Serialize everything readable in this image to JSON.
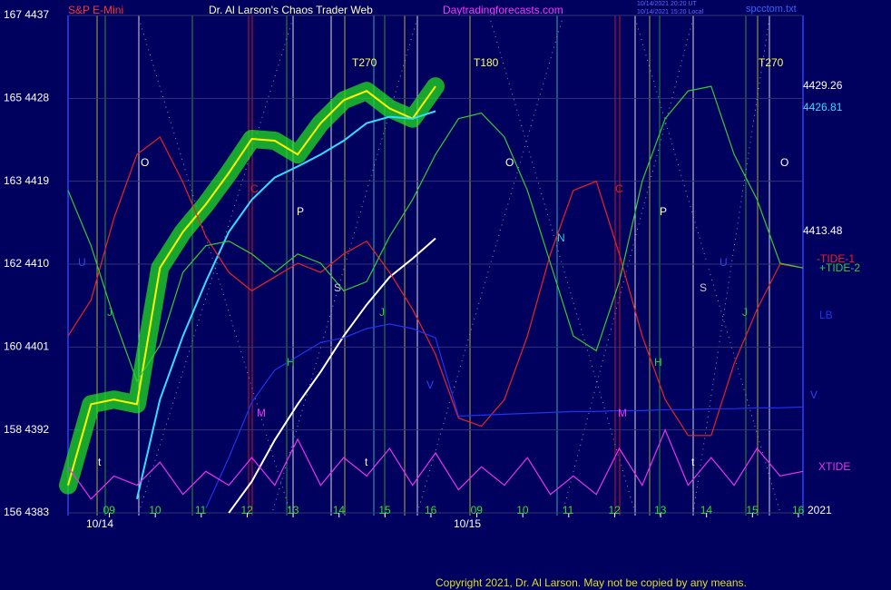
{
  "chart_data": {
    "type": "line",
    "title": "Dr. Al Larson's Chaos Trader Web",
    "symbol": "S&P E-Mini",
    "site": "Daytradingforecasts.com",
    "timestamps": [
      "10/14/2021 20:20 UT",
      "10/14/2021 15:20 Local"
    ],
    "file": "spcctom.txt",
    "copyright": "Copyright 2021, Dr. Al Larson. May not be copied by any means.",
    "dates": [
      "10/14",
      "10/15"
    ],
    "year": "2021",
    "ylim": [
      4383,
      4437
    ],
    "yticks": [
      {
        "value": 4383,
        "label": "156 4383"
      },
      {
        "value": 4392,
        "label": "158 4392"
      },
      {
        "value": 4401,
        "label": "160 4401"
      },
      {
        "value": 4410,
        "label": "162 4410"
      },
      {
        "value": 4419,
        "label": "163 4419"
      },
      {
        "value": 4428,
        "label": "165 4428"
      },
      {
        "value": 4437,
        "label": "167 4437"
      }
    ],
    "xlim": [
      -0.9,
      15.1
    ],
    "xticks": [
      {
        "value": 0,
        "label": "09"
      },
      {
        "value": 1,
        "label": "10"
      },
      {
        "value": 2,
        "label": "11"
      },
      {
        "value": 3,
        "label": "12"
      },
      {
        "value": 4,
        "label": "13"
      },
      {
        "value": 5,
        "label": "14"
      },
      {
        "value": 6,
        "label": "15"
      },
      {
        "value": 7,
        "label": "16"
      },
      {
        "value": 8,
        "label": "09"
      },
      {
        "value": 9,
        "label": "10"
      },
      {
        "value": 10,
        "label": "11"
      },
      {
        "value": 11,
        "label": "12"
      },
      {
        "value": 12,
        "label": "13"
      },
      {
        "value": 13,
        "label": "14"
      },
      {
        "value": 14,
        "label": "15"
      },
      {
        "value": 15,
        "label": "16"
      }
    ],
    "grid": true,
    "x": [
      -0.9,
      -0.4,
      0.1,
      0.6,
      1.1,
      1.6,
      2.1,
      2.6,
      3.1,
      3.6,
      4.1,
      4.6,
      5.1,
      5.6,
      6.1,
      6.6,
      7.1,
      7.6,
      8.1,
      8.6,
      9.1,
      9.6,
      10.1,
      10.6,
      11.1,
      11.6,
      12.1,
      12.6,
      13.1,
      13.6,
      14.1,
      14.6,
      15.1
    ],
    "series": [
      {
        "color": "#ffff00",
        "values": [
          4386,
          4394.8,
          4395.3,
          4394.8,
          4409.6,
          4413.5,
          4416.5,
          4419.9,
          4423.6,
          4423.4,
          4421.9,
          4425.3,
          4427.8,
          4428.8,
          4426.9,
          4425.8,
          4429.3,
          null,
          null,
          null,
          null,
          null,
          null,
          null,
          null,
          null,
          null,
          null,
          null,
          null,
          null,
          null,
          null
        ]
      },
      {
        "color": "#33ddff",
        "values": [
          null,
          null,
          null,
          4384.5,
          4395.3,
          4402.2,
          4408.1,
          4413.5,
          4417,
          4419.4,
          4420.6,
          4421.9,
          4423.4,
          4425.3,
          4426,
          4425.8,
          4426.6,
          null,
          null,
          null,
          null,
          null,
          null,
          null,
          null,
          null,
          null,
          null,
          null,
          null,
          null,
          null,
          null
        ]
      },
      {
        "color": "#ffffff",
        "values": [
          null,
          null,
          null,
          null,
          null,
          null,
          null,
          4383,
          4386.4,
          4390.9,
          4394.8,
          4398.3,
          4402.2,
          4405.6,
          4408.6,
          4410.6,
          4412.8,
          null,
          null,
          null,
          null,
          null,
          null,
          null,
          null,
          null,
          null,
          null,
          null,
          null,
          null,
          null,
          null
        ]
      },
      {
        "name": "-TIDE-1",
        "color": "#ee2222",
        "values": [
          4402.2,
          4406.1,
          4415,
          4421.9,
          4423.8,
          4418.9,
          4413,
          4409.1,
          4407.1,
          4408.6,
          4410.1,
          4409.1,
          4411.1,
          4412.5,
          4409.1,
          4405.1,
          4400.2,
          4393.3,
          4392.4,
          4395.3,
          4402.2,
          4411.1,
          4418,
          4419,
          4411.1,
          4402.2,
          4395.3,
          4391.4,
          4391.4,
          4399.2,
          4405.1,
          4410,
          4409.6
        ]
      },
      {
        "name": "+TIDE-2",
        "color": "#33cc33",
        "values": [
          4418,
          4412,
          4404.2,
          4397.3,
          4401.2,
          4409.1,
          4412,
          4412.5,
          4411.1,
          4409.1,
          4411.1,
          4410.1,
          4407.1,
          4408.1,
          4413,
          4417,
          4421.9,
          4425.8,
          4426.4,
          4423.8,
          4418,
          4410.1,
          4402.2,
          4400.6,
          4408.1,
          4419,
          4425.8,
          4428.8,
          4429.3,
          4421.9,
          4417,
          4410.1,
          4409.6
        ]
      },
      {
        "name": "LB",
        "color": "#2233ee",
        "values": [
          null,
          null,
          null,
          null,
          null,
          null,
          4383.5,
          4389,
          4395,
          4398.5,
          4400,
          4401.5,
          4402,
          4403,
          4403.5,
          4403,
          4402,
          4393.5,
          4393.6,
          4393.7,
          4393.8,
          4393.9,
          4394,
          4394,
          4394.1,
          4394.1,
          4394.2,
          4394.2,
          4394.3,
          4394.3,
          4394.4,
          4394.4,
          4394.5
        ]
      },
      {
        "name": "XTIDE",
        "color": "#ee33ee",
        "values": [
          4388,
          4384.5,
          4387,
          4386,
          4388.5,
          4385,
          4387.5,
          4386,
          4389,
          4386,
          4391,
          4386,
          4389,
          4387,
          4390,
          4386,
          4389.5,
          4385.5,
          4388,
          4386,
          4389,
          4385,
          4387,
          4385,
          4390,
          4386,
          4392,
          4386,
          4389,
          4386,
          4390,
          4387,
          4387.5
        ]
      }
    ],
    "right_labels": [
      "4429.26",
      "4426.81",
      "4413.48"
    ],
    "annotations": [
      "T270",
      "T180",
      "T270",
      "O",
      "O",
      "O",
      "P",
      "P",
      "S",
      "S",
      "J",
      "J",
      "J",
      "H",
      "H",
      "M",
      "M",
      "N",
      "C",
      "C",
      "U",
      "U",
      "V",
      "V",
      "t",
      "t",
      "t"
    ]
  }
}
